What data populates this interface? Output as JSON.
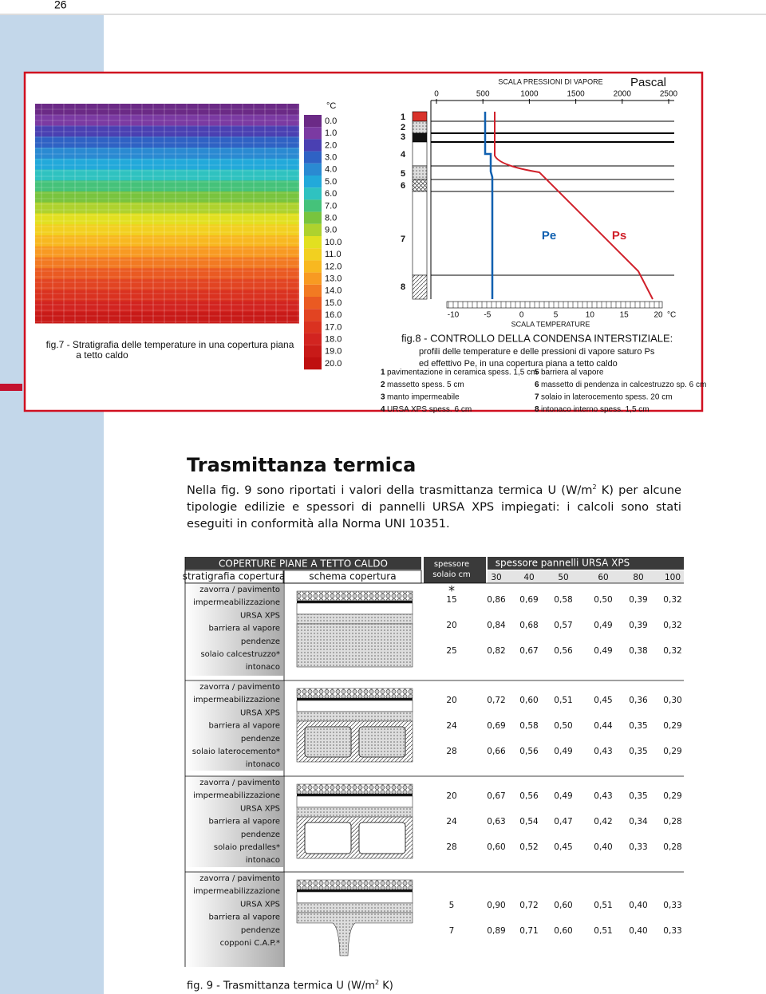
{
  "page_number": "26",
  "fig7": {
    "caption": [
      "fig.7 - Stratigrafia delle temperature in una copertura piana",
      "a tetto caldo"
    ],
    "scale_unit": "°C",
    "scale": [
      "0.0",
      "1.0",
      "2.0",
      "3.0",
      "4.0",
      "5.0",
      "6.0",
      "7.0",
      "8.0",
      "9.0",
      "10.0",
      "11.0",
      "12.0",
      "13.0",
      "14.0",
      "15.0",
      "16.0",
      "17.0",
      "18.0",
      "19.0",
      "20.0"
    ]
  },
  "fig8": {
    "pressure_title": "SCALA PRESSIONI DI VAPORE",
    "pressure_unit": "Pascal",
    "pressure_ticks": [
      0,
      500,
      1000,
      1500,
      2000,
      2500
    ],
    "temp_ticks": [
      -10,
      -5,
      0,
      5,
      10,
      15,
      20
    ],
    "temp_unit": "°C",
    "temp_title": "SCALA TEMPERATURE",
    "layers": [
      1,
      2,
      3,
      4,
      5,
      6,
      7,
      8
    ],
    "curves": [
      "Pe",
      "Ps"
    ],
    "title": "fig.8 - CONTROLLO DELLA CONDENSA INTERSTIZIALE:",
    "subtitle": [
      "profili delle temperature e delle pressioni di vapore saturo Ps",
      "ed effettivo Pe, in una copertura piana a tetto caldo"
    ],
    "legend": [
      {
        "num": "1",
        "text": "pavimentazione in ceramica spess. 1,5 cm"
      },
      {
        "num": "2",
        "text": "massetto spess. 5 cm"
      },
      {
        "num": "3",
        "text": "manto impermeabile"
      },
      {
        "num": "4",
        "text": "URSA XPS spess. 6 cm"
      },
      {
        "num": "5",
        "text": "barriera al vapore"
      },
      {
        "num": "6",
        "text": "massetto di pendenza in calcestruzzo sp. 6 cm"
      },
      {
        "num": "7",
        "text": "solaio in laterocemento spess. 20 cm"
      },
      {
        "num": "8",
        "text": "intonaco interno spess. 1,5 cm"
      }
    ]
  },
  "section": {
    "title": "Trasmittanza termica",
    "paragraph": [
      "Nella fig. 9 sono riportati i valori della trasmittanza termica U (W/m",
      "2",
      " K) per alcune tipologie edilizie e spessori di pannelli URSA XPS impiegati: i calcoli sono stati eseguiti in conformità alla Norma UNI 10351."
    ]
  },
  "table": {
    "title": "COPERTURE PIANE A TETTO CALDO",
    "col_strat": "stratigrafia copertura",
    "col_schema": "schema copertura",
    "col_solaio": [
      "spessore",
      "solaio cm"
    ],
    "col_xps": "spessore pannelli URSA XPS",
    "xps": [
      30,
      40,
      50,
      60,
      80,
      100
    ],
    "note": "*",
    "groups": [
      {
        "layers": [
          "zavorra / pavimento",
          "impermeabilizzazione",
          "URSA XPS",
          "barriera al vapore",
          "pendenze",
          "solaio calcestruzzo*",
          "intonaco"
        ],
        "rows": [
          {
            "solaio": 15,
            "u": [
              "0,86",
              "0,69",
              "0,58",
              "0,50",
              "0,39",
              "0,32"
            ]
          },
          {
            "solaio": 20,
            "u": [
              "0,84",
              "0,68",
              "0,57",
              "0,49",
              "0,39",
              "0,32"
            ]
          },
          {
            "solaio": 25,
            "u": [
              "0,82",
              "0,67",
              "0,56",
              "0,49",
              "0,38",
              "0,32"
            ]
          }
        ]
      },
      {
        "layers": [
          "zavorra / pavimento",
          "impermeabilizzazione",
          "URSA XPS",
          "barriera al vapore",
          "pendenze",
          "solaio laterocemento*",
          "intonaco"
        ],
        "rows": [
          {
            "solaio": 20,
            "u": [
              "0,72",
              "0,60",
              "0,51",
              "0,45",
              "0,36",
              "0,30"
            ]
          },
          {
            "solaio": 24,
            "u": [
              "0,69",
              "0,58",
              "0,50",
              "0,44",
              "0,35",
              "0,29"
            ]
          },
          {
            "solaio": 28,
            "u": [
              "0,66",
              "0,56",
              "0,49",
              "0,43",
              "0,35",
              "0,29"
            ]
          }
        ]
      },
      {
        "layers": [
          "zavorra / pavimento",
          "impermeabilizzazione",
          "URSA XPS",
          "barriera al vapore",
          "pendenze",
          "solaio predalles*",
          "intonaco"
        ],
        "rows": [
          {
            "solaio": 20,
            "u": [
              "0,67",
              "0,56",
              "0,49",
              "0,43",
              "0,35",
              "0,29"
            ]
          },
          {
            "solaio": 24,
            "u": [
              "0,63",
              "0,54",
              "0,47",
              "0,42",
              "0,34",
              "0,28"
            ]
          },
          {
            "solaio": 28,
            "u": [
              "0,60",
              "0,52",
              "0,45",
              "0,40",
              "0,33",
              "0,28"
            ]
          }
        ]
      },
      {
        "layers": [
          "zavorra / pavimento",
          "impermeabilizzazione",
          "URSA XPS",
          "barriera al vapore",
          "pendenze",
          "copponi C.A.P.*"
        ],
        "rows": [
          {
            "solaio": 5,
            "u": [
              "0,90",
              "0,72",
              "0,60",
              "0,51",
              "0,40",
              "0,33"
            ]
          },
          {
            "solaio": 7,
            "u": [
              "0,89",
              "0,71",
              "0,60",
              "0,51",
              "0,40",
              "0,33"
            ]
          }
        ]
      }
    ]
  },
  "caption": [
    "fig. 9 - Trasmittanza termica U (W/m",
    "2",
    " K)"
  ]
}
